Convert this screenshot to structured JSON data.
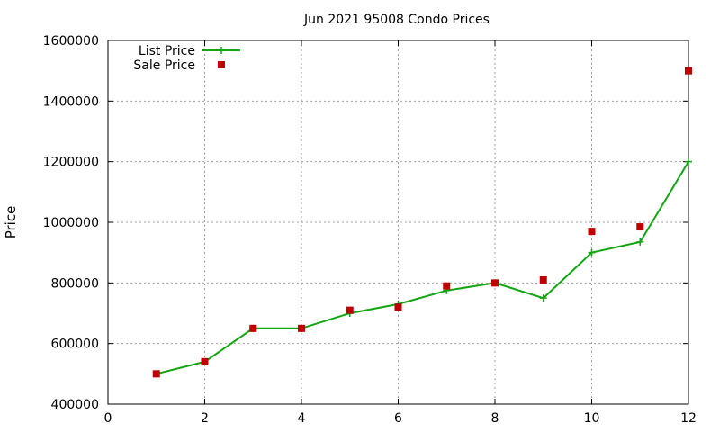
{
  "chart_data": {
    "type": "line",
    "title": "Jun 2021 95008 Condo Prices",
    "xlabel": "",
    "ylabel": "Price",
    "xlim": [
      0,
      12
    ],
    "ylim": [
      400000,
      1600000
    ],
    "x_ticks": [
      0,
      2,
      4,
      6,
      8,
      10,
      12
    ],
    "y_ticks": [
      400000,
      600000,
      800000,
      1000000,
      1200000,
      1400000,
      1600000
    ],
    "grid": true,
    "legend_position": "top-left",
    "x": [
      1,
      2,
      3,
      4,
      5,
      6,
      7,
      8,
      9,
      10,
      11,
      12
    ],
    "series": [
      {
        "name": "List Price",
        "style": "line-plus",
        "color": "#11a611",
        "values": [
          500000,
          540000,
          650000,
          650000,
          700000,
          730000,
          775000,
          800000,
          750000,
          900000,
          935000,
          1200000
        ]
      },
      {
        "name": "Sale Price",
        "style": "square-points",
        "color": "#c00000",
        "values": [
          500000,
          540000,
          650000,
          650000,
          710000,
          720000,
          790000,
          800000,
          810000,
          970000,
          985000,
          1500000
        ]
      }
    ]
  }
}
